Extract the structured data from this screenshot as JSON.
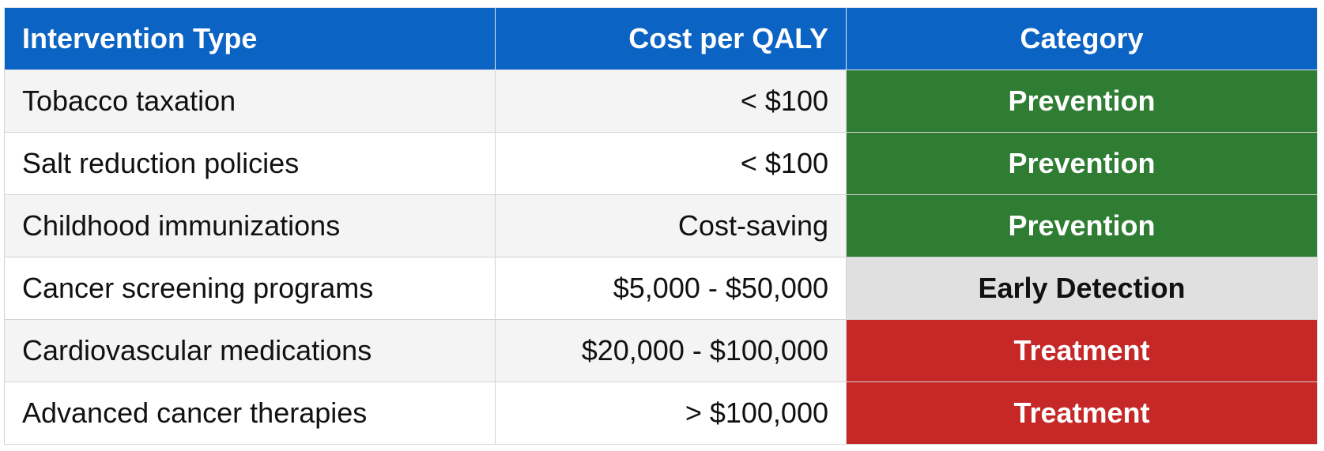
{
  "table": {
    "header": [
      "Intervention Type",
      "Cost per QALY",
      "Category"
    ],
    "rows": [
      [
        "Tobacco taxation",
        "< $100",
        "Prevention"
      ],
      [
        "Salt reduction policies",
        "< $100",
        "Prevention"
      ],
      [
        "Childhood immunizations",
        "Cost-saving",
        "Prevention"
      ],
      [
        "Cancer screening programs",
        "$5,000 - $50,000",
        "Early Detection"
      ],
      [
        "Cardiovascular medications",
        "$20,000 - $100,000",
        "Treatment"
      ],
      [
        "Advanced cancer therapies",
        "> $100,000",
        "Treatment"
      ]
    ]
  }
}
